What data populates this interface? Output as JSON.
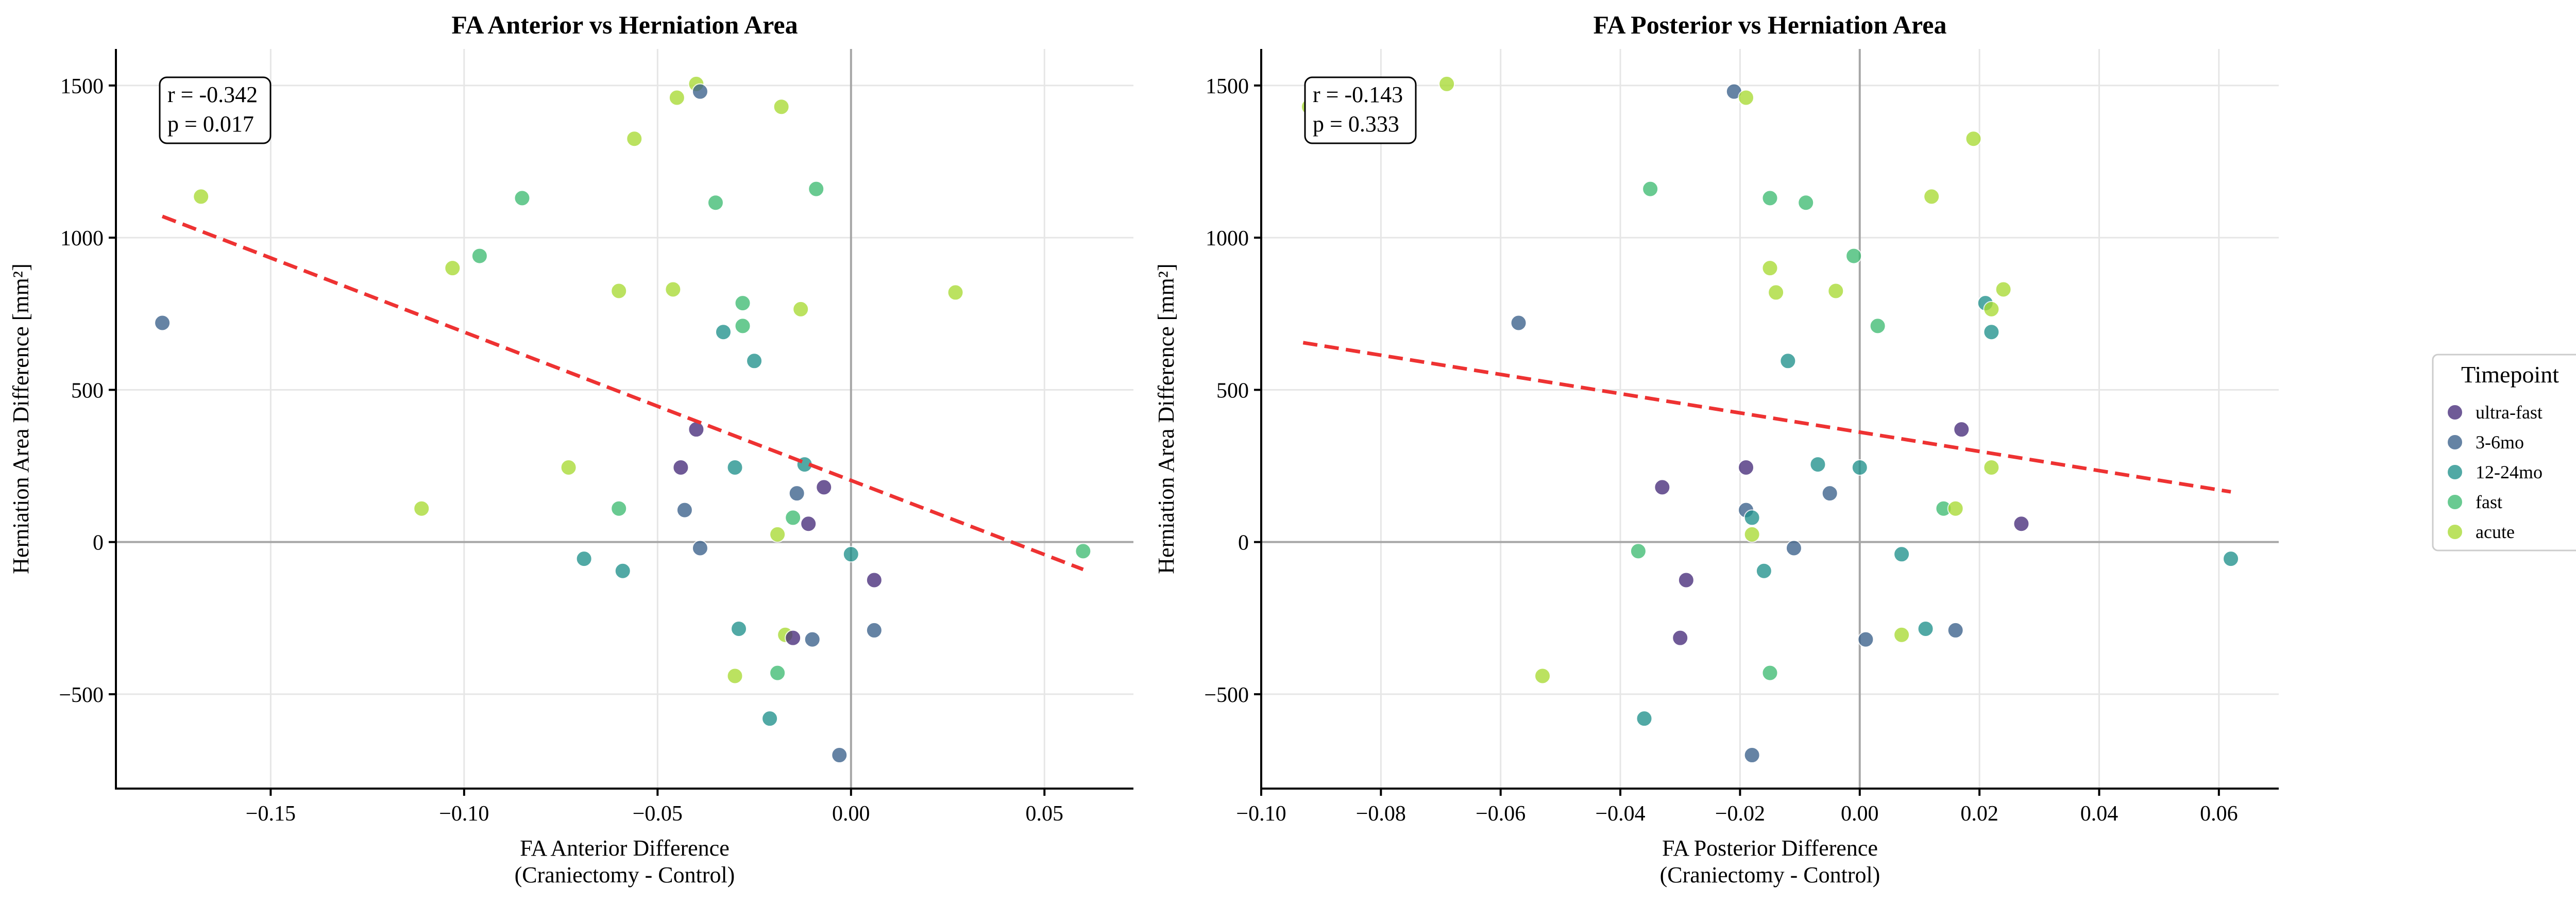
{
  "colors": {
    "ultra-fast": "#472d7b",
    "3-6mo": "#3b618b",
    "12-24mo": "#21918c",
    "fast": "#3fbc73",
    "acute": "#a8db34",
    "trend": "#ee3232",
    "zero_line": "#a6a6a6",
    "grid": "#e6e6e6"
  },
  "legend": {
    "title": "Timepoint",
    "placement": "right-center",
    "items": [
      {
        "key": "ultra-fast",
        "label": "ultra-fast"
      },
      {
        "key": "3-6mo",
        "label": "3-6mo"
      },
      {
        "key": "12-24mo",
        "label": "12-24mo"
      },
      {
        "key": "fast",
        "label": "fast"
      },
      {
        "key": "acute",
        "label": "acute"
      }
    ]
  },
  "chart_data": [
    {
      "type": "scatter",
      "title": "FA Anterior vs Herniation Area",
      "xlabel_line1": "FA Anterior Difference",
      "xlabel_line2": "(Craniectomy - Control)",
      "ylabel": "Herniation Area Difference [mm²]",
      "xlim": [
        -0.19,
        0.073
      ],
      "ylim": [
        -810,
        1620
      ],
      "xticks": [
        -0.15,
        -0.1,
        -0.05,
        0.0,
        0.05
      ],
      "xtick_labels": [
        "−0.15",
        "−0.10",
        "−0.05",
        "0.00",
        "0.05"
      ],
      "yticks": [
        -500,
        0,
        500,
        1000,
        1500
      ],
      "ytick_labels": [
        "−500",
        "0",
        "500",
        "1000",
        "1500"
      ],
      "grid": true,
      "zero_lines": true,
      "stats": {
        "r": "r = -0.342",
        "p": "p = 0.017"
      },
      "trend": {
        "x": [
          -0.178,
          0.06
        ],
        "y": [
          1070,
          -90
        ]
      },
      "points": [
        {
          "x": -0.178,
          "y": 720,
          "group": "3-6mo"
        },
        {
          "x": -0.168,
          "y": 1135,
          "group": "acute"
        },
        {
          "x": -0.111,
          "y": 110,
          "group": "acute"
        },
        {
          "x": -0.103,
          "y": 900,
          "group": "acute"
        },
        {
          "x": -0.096,
          "y": 940,
          "group": "fast"
        },
        {
          "x": -0.085,
          "y": 1130,
          "group": "fast"
        },
        {
          "x": -0.073,
          "y": 245,
          "group": "acute"
        },
        {
          "x": -0.069,
          "y": -55,
          "group": "12-24mo"
        },
        {
          "x": -0.06,
          "y": 825,
          "group": "acute"
        },
        {
          "x": -0.06,
          "y": 110,
          "group": "fast"
        },
        {
          "x": -0.059,
          "y": -95,
          "group": "12-24mo"
        },
        {
          "x": -0.056,
          "y": 1325,
          "group": "acute"
        },
        {
          "x": -0.046,
          "y": 830,
          "group": "acute"
        },
        {
          "x": -0.045,
          "y": 1460,
          "group": "acute"
        },
        {
          "x": -0.044,
          "y": 245,
          "group": "ultra-fast"
        },
        {
          "x": -0.043,
          "y": 105,
          "group": "3-6mo"
        },
        {
          "x": -0.04,
          "y": 1505,
          "group": "acute"
        },
        {
          "x": -0.039,
          "y": 1480,
          "group": "3-6mo"
        },
        {
          "x": -0.04,
          "y": 370,
          "group": "ultra-fast"
        },
        {
          "x": -0.039,
          "y": -20,
          "group": "3-6mo"
        },
        {
          "x": -0.035,
          "y": 1115,
          "group": "fast"
        },
        {
          "x": -0.033,
          "y": 690,
          "group": "12-24mo"
        },
        {
          "x": -0.03,
          "y": 245,
          "group": "12-24mo"
        },
        {
          "x": -0.029,
          "y": -285,
          "group": "12-24mo"
        },
        {
          "x": -0.03,
          "y": -440,
          "group": "acute"
        },
        {
          "x": -0.028,
          "y": 785,
          "group": "fast"
        },
        {
          "x": -0.028,
          "y": 710,
          "group": "fast"
        },
        {
          "x": -0.025,
          "y": 595,
          "group": "12-24mo"
        },
        {
          "x": -0.021,
          "y": -580,
          "group": "12-24mo"
        },
        {
          "x": -0.019,
          "y": -430,
          "group": "fast"
        },
        {
          "x": -0.019,
          "y": 25,
          "group": "acute"
        },
        {
          "x": -0.018,
          "y": 1430,
          "group": "acute"
        },
        {
          "x": -0.017,
          "y": -305,
          "group": "acute"
        },
        {
          "x": -0.015,
          "y": -315,
          "group": "ultra-fast"
        },
        {
          "x": -0.015,
          "y": 80,
          "group": "fast"
        },
        {
          "x": -0.014,
          "y": 160,
          "group": "3-6mo"
        },
        {
          "x": -0.013,
          "y": 765,
          "group": "acute"
        },
        {
          "x": -0.012,
          "y": 255,
          "group": "12-24mo"
        },
        {
          "x": -0.011,
          "y": 60,
          "group": "ultra-fast"
        },
        {
          "x": -0.009,
          "y": 1160,
          "group": "fast"
        },
        {
          "x": -0.01,
          "y": -320,
          "group": "3-6mo"
        },
        {
          "x": -0.007,
          "y": 180,
          "group": "ultra-fast"
        },
        {
          "x": -0.003,
          "y": -700,
          "group": "3-6mo"
        },
        {
          "x": 0.0,
          "y": -40,
          "group": "12-24mo"
        },
        {
          "x": 0.006,
          "y": -125,
          "group": "ultra-fast"
        },
        {
          "x": 0.006,
          "y": -290,
          "group": "3-6mo"
        },
        {
          "x": 0.027,
          "y": 820,
          "group": "acute"
        },
        {
          "x": 0.06,
          "y": -30,
          "group": "fast"
        }
      ]
    },
    {
      "type": "scatter",
      "title": "FA Posterior vs Herniation Area",
      "xlabel_line1": "FA Posterior Difference",
      "xlabel_line2": "(Craniectomy - Control)",
      "ylabel": "Herniation Area Difference [mm²]",
      "xlim": [
        -0.1,
        0.07
      ],
      "ylim": [
        -810,
        1620
      ],
      "xticks": [
        -0.1,
        -0.08,
        -0.06,
        -0.04,
        -0.02,
        0.0,
        0.02,
        0.04,
        0.06
      ],
      "xtick_labels": [
        "−0.10",
        "−0.08",
        "−0.06",
        "−0.04",
        "−0.02",
        "0.00",
        "0.02",
        "0.04",
        "0.06"
      ],
      "yticks": [
        -500,
        0,
        500,
        1000,
        1500
      ],
      "ytick_labels": [
        "−500",
        "0",
        "500",
        "1000",
        "1500"
      ],
      "grid": true,
      "zero_lines": true,
      "stats": {
        "r": "r = -0.143",
        "p": "p = 0.333"
      },
      "trend": {
        "x": [
          -0.093,
          0.062
        ],
        "y": [
          655,
          165
        ]
      },
      "points": [
        {
          "x": -0.092,
          "y": 1430,
          "group": "acute"
        },
        {
          "x": -0.069,
          "y": 1505,
          "group": "acute"
        },
        {
          "x": -0.057,
          "y": 720,
          "group": "3-6mo"
        },
        {
          "x": -0.053,
          "y": -440,
          "group": "acute"
        },
        {
          "x": -0.037,
          "y": -30,
          "group": "fast"
        },
        {
          "x": -0.036,
          "y": -580,
          "group": "12-24mo"
        },
        {
          "x": -0.035,
          "y": 1160,
          "group": "fast"
        },
        {
          "x": -0.033,
          "y": 180,
          "group": "ultra-fast"
        },
        {
          "x": -0.03,
          "y": -315,
          "group": "ultra-fast"
        },
        {
          "x": -0.029,
          "y": -125,
          "group": "ultra-fast"
        },
        {
          "x": -0.021,
          "y": 1480,
          "group": "3-6mo"
        },
        {
          "x": -0.019,
          "y": 1460,
          "group": "acute"
        },
        {
          "x": -0.019,
          "y": 245,
          "group": "ultra-fast"
        },
        {
          "x": -0.019,
          "y": 105,
          "group": "3-6mo"
        },
        {
          "x": -0.018,
          "y": 80,
          "group": "12-24mo"
        },
        {
          "x": -0.018,
          "y": 25,
          "group": "acute"
        },
        {
          "x": -0.018,
          "y": -700,
          "group": "3-6mo"
        },
        {
          "x": -0.016,
          "y": -95,
          "group": "12-24mo"
        },
        {
          "x": -0.015,
          "y": 1130,
          "group": "fast"
        },
        {
          "x": -0.015,
          "y": 900,
          "group": "acute"
        },
        {
          "x": -0.015,
          "y": -430,
          "group": "fast"
        },
        {
          "x": -0.014,
          "y": 820,
          "group": "acute"
        },
        {
          "x": -0.012,
          "y": 595,
          "group": "12-24mo"
        },
        {
          "x": -0.011,
          "y": -20,
          "group": "3-6mo"
        },
        {
          "x": -0.009,
          "y": 1115,
          "group": "fast"
        },
        {
          "x": -0.007,
          "y": 255,
          "group": "12-24mo"
        },
        {
          "x": -0.005,
          "y": 160,
          "group": "3-6mo"
        },
        {
          "x": -0.004,
          "y": 825,
          "group": "acute"
        },
        {
          "x": -0.001,
          "y": 940,
          "group": "fast"
        },
        {
          "x": 0.0,
          "y": 245,
          "group": "12-24mo"
        },
        {
          "x": 0.001,
          "y": -320,
          "group": "3-6mo"
        },
        {
          "x": 0.003,
          "y": 710,
          "group": "fast"
        },
        {
          "x": 0.007,
          "y": -40,
          "group": "12-24mo"
        },
        {
          "x": 0.007,
          "y": -305,
          "group": "acute"
        },
        {
          "x": 0.011,
          "y": -285,
          "group": "12-24mo"
        },
        {
          "x": 0.012,
          "y": 1135,
          "group": "acute"
        },
        {
          "x": 0.014,
          "y": 110,
          "group": "fast"
        },
        {
          "x": 0.016,
          "y": -290,
          "group": "3-6mo"
        },
        {
          "x": 0.016,
          "y": 110,
          "group": "acute"
        },
        {
          "x": 0.017,
          "y": 370,
          "group": "ultra-fast"
        },
        {
          "x": 0.019,
          "y": 1325,
          "group": "acute"
        },
        {
          "x": 0.021,
          "y": 785,
          "group": "12-24mo"
        },
        {
          "x": 0.022,
          "y": 765,
          "group": "acute"
        },
        {
          "x": 0.022,
          "y": 690,
          "group": "12-24mo"
        },
        {
          "x": 0.022,
          "y": 245,
          "group": "acute"
        },
        {
          "x": 0.024,
          "y": 830,
          "group": "acute"
        },
        {
          "x": 0.027,
          "y": 60,
          "group": "ultra-fast"
        },
        {
          "x": 0.062,
          "y": -55,
          "group": "12-24mo"
        }
      ]
    }
  ]
}
